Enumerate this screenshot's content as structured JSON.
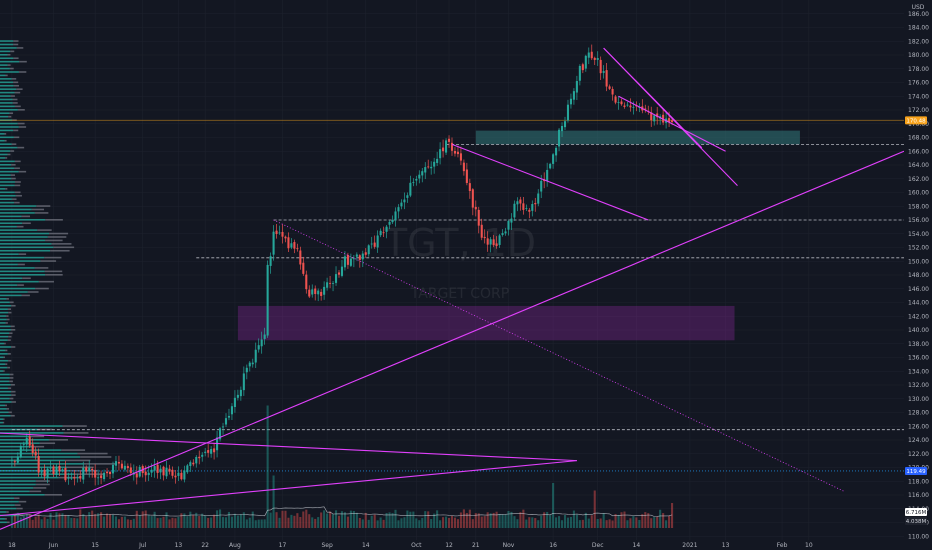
{
  "watermark": {
    "symbol": "TGT, 1D",
    "name": "TARGET CORP"
  },
  "axis": {
    "currency": "USD"
  },
  "chart_data": {
    "type": "candlestick",
    "ylim": [
      108,
      188
    ],
    "y_ticks": [
      110,
      112,
      114,
      116,
      118,
      120,
      122,
      124,
      126,
      128,
      130,
      132,
      134,
      136,
      138,
      140,
      142,
      144,
      146,
      148,
      150,
      152,
      154,
      156,
      158,
      160,
      162,
      164,
      166,
      168,
      170,
      172,
      174,
      176,
      178,
      180,
      182,
      184,
      186
    ],
    "x_ticks": [
      {
        "label": "18",
        "day": 0
      },
      {
        "label": "Jun",
        "day": 14
      },
      {
        "label": "15",
        "day": 28
      },
      {
        "label": "Jul",
        "day": 44
      },
      {
        "label": "13",
        "day": 56
      },
      {
        "label": "22",
        "day": 65
      },
      {
        "label": "Aug",
        "day": 75
      },
      {
        "label": "17",
        "day": 91
      },
      {
        "label": "Sep",
        "day": 106
      },
      {
        "label": "14",
        "day": 119
      },
      {
        "label": "Oct",
        "day": 136
      },
      {
        "label": "12",
        "day": 147
      },
      {
        "label": "21",
        "day": 156
      },
      {
        "label": "Nov",
        "day": 167
      },
      {
        "label": "16",
        "day": 182
      },
      {
        "label": "Dec",
        "day": 197
      },
      {
        "label": "14",
        "day": 210
      },
      {
        "label": "2021",
        "day": 228
      },
      {
        "label": "13",
        "day": 240
      },
      {
        "label": "Feb",
        "day": 259
      },
      {
        "label": "10",
        "day": 268
      }
    ],
    "x_domain": [
      -4,
      300
    ],
    "last_day": 222,
    "price_badges": [
      {
        "label": "170.48",
        "value": 170.5,
        "color": "#f7a21b"
      },
      {
        "label": "119.49",
        "value": 119.49,
        "color": "#2962ff"
      }
    ],
    "volume_badges": [
      {
        "label": "6.716M",
        "color": "#ffffff",
        "text_color": "#131722"
      },
      {
        "label": "4.038M",
        "color": "#1e222d",
        "text_color": "#d1d4dc"
      }
    ],
    "anchors": [
      {
        "day": 0,
        "price": 121
      },
      {
        "day": 5,
        "price": 124
      },
      {
        "day": 10,
        "price": 119
      },
      {
        "day": 15,
        "price": 120
      },
      {
        "day": 20,
        "price": 118
      },
      {
        "day": 25,
        "price": 120
      },
      {
        "day": 30,
        "price": 118
      },
      {
        "day": 35,
        "price": 121
      },
      {
        "day": 40,
        "price": 119
      },
      {
        "day": 48,
        "price": 120
      },
      {
        "day": 56,
        "price": 118.5
      },
      {
        "day": 62,
        "price": 121
      },
      {
        "day": 68,
        "price": 123
      },
      {
        "day": 72,
        "price": 127
      },
      {
        "day": 76,
        "price": 131
      },
      {
        "day": 80,
        "price": 135
      },
      {
        "day": 84,
        "price": 139
      },
      {
        "day": 85,
        "price": 139
      },
      {
        "day": 86,
        "price": 149
      },
      {
        "day": 88,
        "price": 154
      },
      {
        "day": 92,
        "price": 153
      },
      {
        "day": 96,
        "price": 151
      },
      {
        "day": 100,
        "price": 145
      },
      {
        "day": 104,
        "price": 145.5
      },
      {
        "day": 108,
        "price": 147
      },
      {
        "day": 112,
        "price": 150
      },
      {
        "day": 118,
        "price": 150.5
      },
      {
        "day": 124,
        "price": 154
      },
      {
        "day": 130,
        "price": 158
      },
      {
        "day": 136,
        "price": 162
      },
      {
        "day": 142,
        "price": 165
      },
      {
        "day": 146,
        "price": 167
      },
      {
        "day": 150,
        "price": 166
      },
      {
        "day": 154,
        "price": 160
      },
      {
        "day": 158,
        "price": 154
      },
      {
        "day": 162,
        "price": 152
      },
      {
        "day": 166,
        "price": 155
      },
      {
        "day": 170,
        "price": 159
      },
      {
        "day": 174,
        "price": 157
      },
      {
        "day": 178,
        "price": 161
      },
      {
        "day": 182,
        "price": 166
      },
      {
        "day": 186,
        "price": 171
      },
      {
        "day": 190,
        "price": 177
      },
      {
        "day": 194,
        "price": 180
      },
      {
        "day": 196,
        "price": 180
      },
      {
        "day": 200,
        "price": 176
      },
      {
        "day": 204,
        "price": 173
      },
      {
        "day": 208,
        "price": 172.5
      },
      {
        "day": 212,
        "price": 172
      },
      {
        "day": 216,
        "price": 171
      },
      {
        "day": 222,
        "price": 170.5
      }
    ],
    "volume_spikes": [
      {
        "day": 86,
        "value": 9.8
      },
      {
        "day": 88,
        "value": 4.2
      },
      {
        "day": 182,
        "value": 3.6
      },
      {
        "day": 196,
        "value": 3.0
      },
      {
        "day": 222,
        "value": 2.0
      }
    ],
    "annotations": {
      "trendlines": [
        {
          "from": {
            "day": -4,
            "price": 111
          },
          "to": {
            "day": 300,
            "price": 166
          }
        },
        {
          "from": {
            "day": -4,
            "price": 125
          },
          "to": {
            "day": 190,
            "price": 121
          }
        },
        {
          "from": {
            "day": -4,
            "price": 113
          },
          "to": {
            "day": 190,
            "price": 121
          }
        },
        {
          "from": {
            "day": 88,
            "price": 156
          },
          "to": {
            "day": 280,
            "price": 116.5
          },
          "style": "dotted"
        },
        {
          "from": {
            "day": 148,
            "price": 167
          },
          "to": {
            "day": 214,
            "price": 156
          }
        },
        {
          "from": {
            "day": 199,
            "price": 181
          },
          "to": {
            "day": 232,
            "price": 166.5
          }
        },
        {
          "from": {
            "day": 199,
            "price": 181
          },
          "to": {
            "day": 244,
            "price": 161
          }
        },
        {
          "from": {
            "day": 204,
            "price": 174
          },
          "to": {
            "day": 240,
            "price": 166
          }
        }
      ],
      "zones": [
        {
          "day_from": 156,
          "day_to": 265,
          "price_low": 167,
          "price_high": 169,
          "color": "#2f6f73",
          "opacity": 0.6
        },
        {
          "day_from": 76,
          "day_to": 243,
          "price_low": 138.5,
          "price_high": 143.5,
          "color": "#9c27b0",
          "opacity": 0.3
        }
      ],
      "levels": [
        {
          "price": 167,
          "day_from": 146,
          "style": "dashed",
          "color": "#d1d4dc"
        },
        {
          "price": 156,
          "day_from": 88,
          "style": "dashed",
          "color": "#d1d4dc"
        },
        {
          "price": 150.5,
          "day_from": 62,
          "style": "dashed",
          "color": "#d1d4dc"
        },
        {
          "price": 125.5,
          "day_from": 0,
          "style": "dashed",
          "color": "#d1d4dc"
        },
        {
          "price": 119.5,
          "day_from": -4,
          "style": "dotted",
          "color": "#2196f3"
        },
        {
          "price": 170.5,
          "day_from": -4,
          "style": "solid",
          "color": "#f7a21b",
          "opacity": 0.5
        }
      ]
    },
    "colors": {
      "up": "#26a69a",
      "down": "#ef5350",
      "background": "#131722",
      "grid": "#1e222d",
      "axis_text": "#b2b5be",
      "drawing": "#e040fb",
      "volume_ma": "#d1d4dc",
      "profile_main": "#26a69a",
      "profile_secondary": "#787b86"
    }
  }
}
